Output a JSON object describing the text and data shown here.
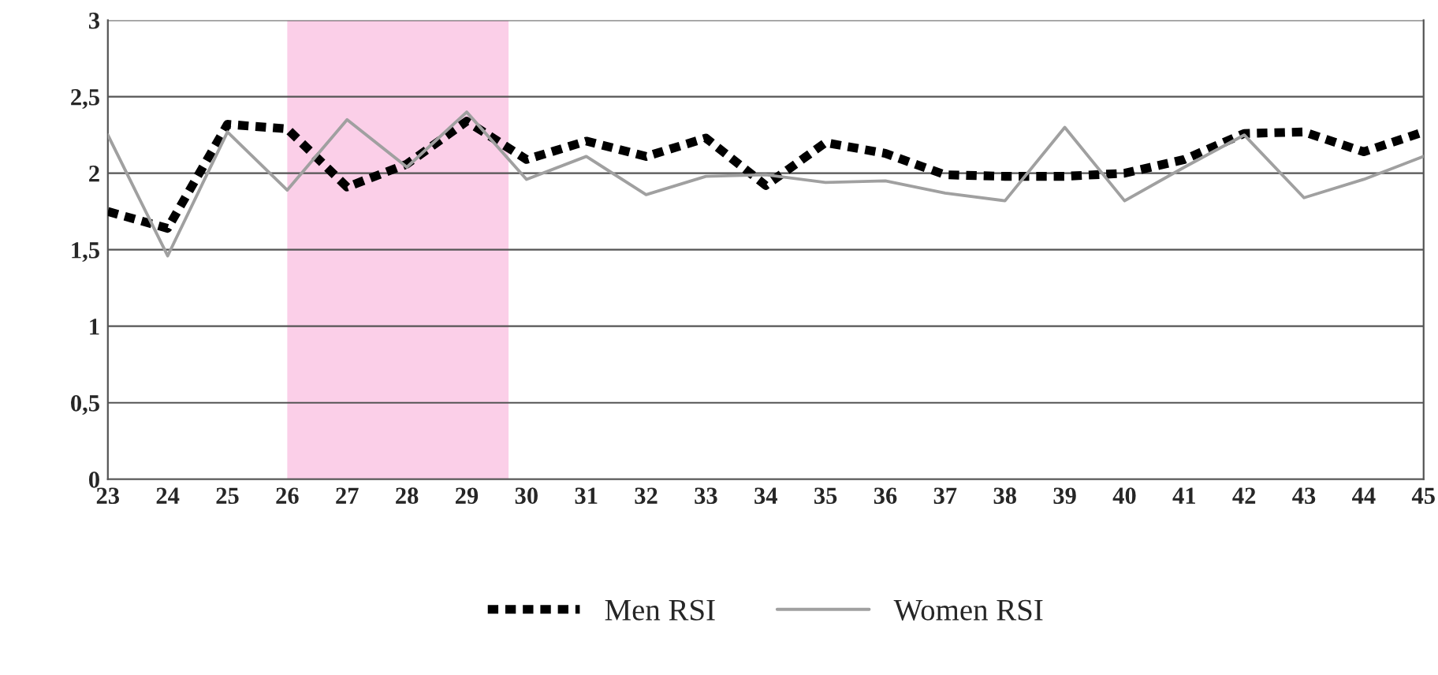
{
  "chart_data": {
    "type": "line",
    "x": [
      23,
      24,
      25,
      26,
      27,
      28,
      29,
      30,
      31,
      32,
      33,
      34,
      35,
      36,
      37,
      38,
      39,
      40,
      41,
      42,
      43,
      44,
      45
    ],
    "series": [
      {
        "name": "Men RSI",
        "color": "#000000",
        "line_style": "dashed",
        "values": [
          1.75,
          1.64,
          2.32,
          2.29,
          1.91,
          2.06,
          2.34,
          2.09,
          2.21,
          2.11,
          2.23,
          1.92,
          2.2,
          2.13,
          1.99,
          1.98,
          1.98,
          2.0,
          2.09,
          2.26,
          2.27,
          2.14,
          2.27
        ]
      },
      {
        "name": "Women RSI",
        "color": "#a0a0a0",
        "line_style": "solid",
        "values": [
          2.25,
          1.46,
          2.27,
          1.89,
          2.35,
          2.04,
          2.4,
          1.96,
          2.11,
          1.86,
          1.98,
          1.99,
          1.94,
          1.95,
          1.87,
          1.82,
          2.3,
          1.82,
          2.04,
          2.25,
          1.84,
          1.96,
          2.11
        ]
      }
    ],
    "xlim": [
      23,
      45
    ],
    "xticks": [
      23,
      24,
      25,
      26,
      27,
      28,
      29,
      30,
      31,
      32,
      33,
      34,
      35,
      36,
      37,
      38,
      39,
      40,
      41,
      42,
      43,
      44,
      45
    ],
    "ylim": [
      0,
      3
    ],
    "yticks": [
      0,
      {
        "value": 0.5,
        "label": "0,5"
      },
      1,
      {
        "value": 1.5,
        "label": "1,5"
      },
      2,
      {
        "value": 2.5,
        "label": "2,5"
      },
      3
    ],
    "bands": [
      {
        "axis": "x",
        "from": 26,
        "to": 29.7,
        "color": "#fbcfe8"
      }
    ],
    "grid": "y",
    "legend": "bottom",
    "marker": "none"
  }
}
